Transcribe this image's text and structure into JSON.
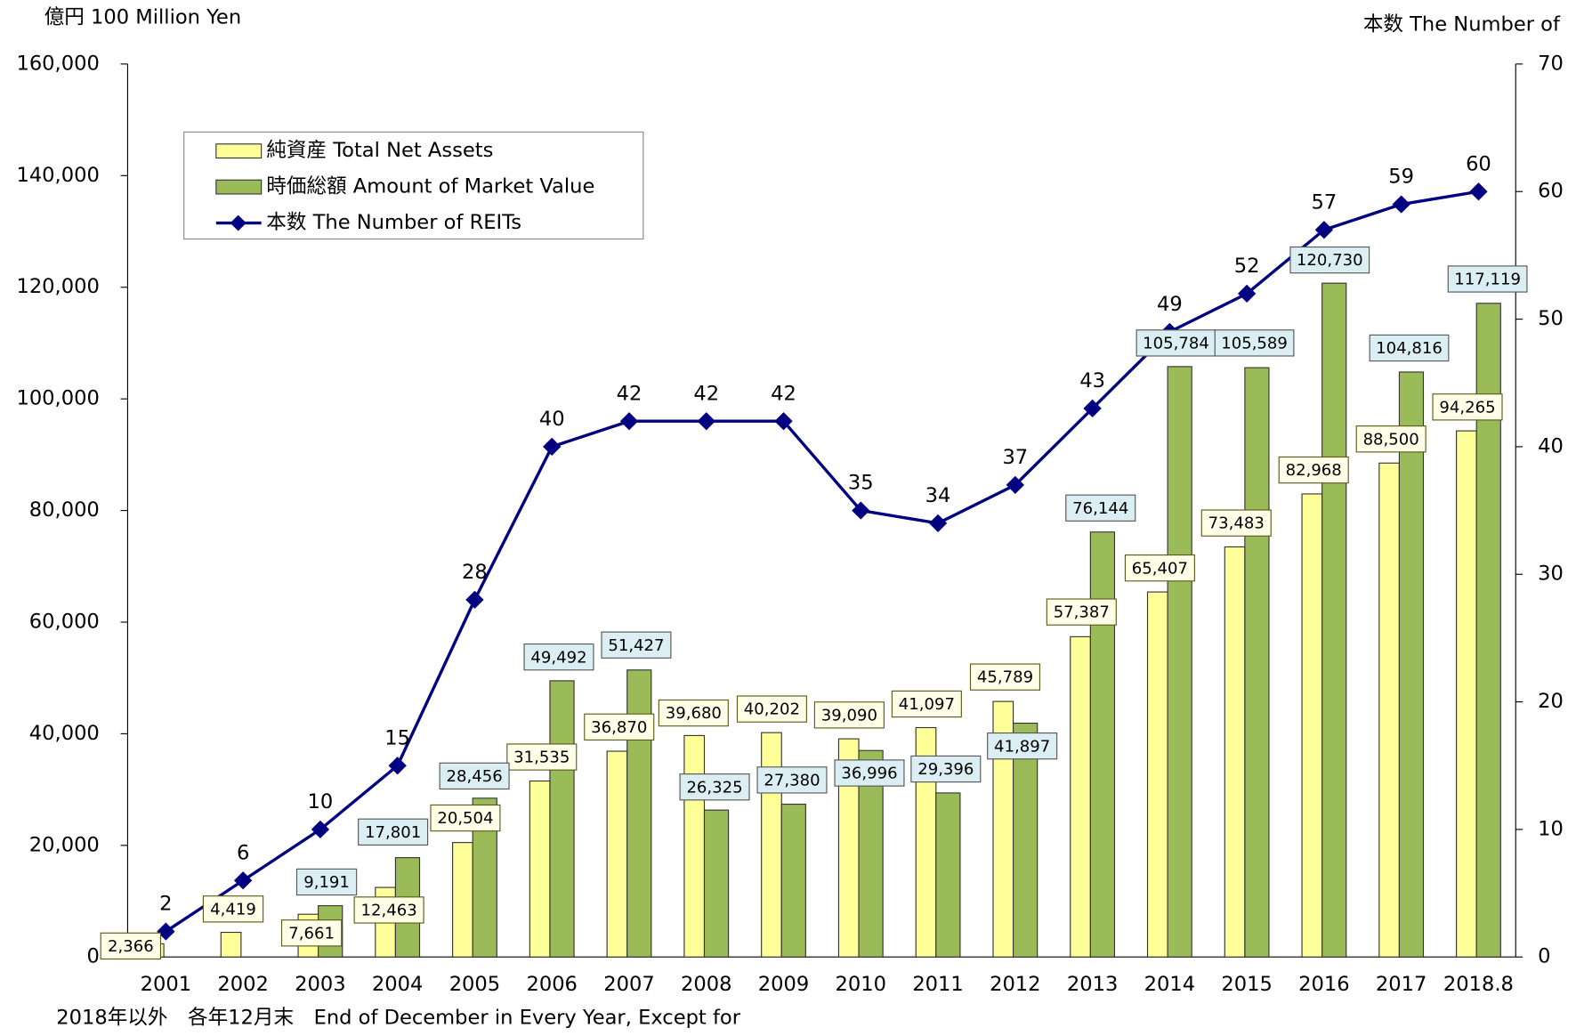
{
  "chart_data": {
    "type": "bar_line",
    "y_label": "億円 100 Million Yen",
    "y2_label": "本数 The Number of",
    "note": "2018年以外　各年12月末　End  of December in Every Year, Except for",
    "categories": [
      "2001",
      "2002",
      "2003",
      "2004",
      "2005",
      "2006",
      "2007",
      "2008",
      "2009",
      "2010",
      "2011",
      "2012",
      "2013",
      "2014",
      "2015",
      "2016",
      "2017",
      "2018.8"
    ],
    "series": [
      {
        "name": "純資産 Total Net Assets",
        "color": "#ffff99",
        "kind": "bar",
        "values": [
          2366,
          4419,
          7661,
          12463,
          20504,
          31535,
          36870,
          39680,
          40202,
          39090,
          41097,
          45789,
          57387,
          65407,
          73483,
          82968,
          88500,
          94265
        ],
        "value_labels": [
          "2,366",
          "4,419",
          "7,661",
          "12,463",
          "20,504",
          "31,535",
          "36,870",
          "39,680",
          "40,202",
          "39,090",
          "41,097",
          "45,789",
          "57,387",
          "65,407",
          "73,483",
          "82,968",
          "88,500",
          "94,265"
        ]
      },
      {
        "name": "時価総額 Amount of Market Value",
        "color": "#9bbb59",
        "kind": "bar",
        "values": [
          null,
          null,
          9191,
          17801,
          28456,
          49492,
          51427,
          26325,
          27380,
          36996,
          29396,
          41897,
          76144,
          105784,
          105589,
          120730,
          104816,
          117119
        ],
        "value_labels": [
          null,
          null,
          "9,191",
          "17,801",
          "28,456",
          "49,492",
          "51,427",
          "26,325",
          "27,380",
          "36,996",
          "29,396",
          "41,897",
          "76,144",
          "105,784",
          "105,589",
          "120,730",
          "104,816",
          "117,119"
        ]
      },
      {
        "name": "本数 The Number of REITs",
        "color": "#000080",
        "kind": "line",
        "axis": "y2",
        "values": [
          2,
          6,
          10,
          15,
          28,
          40,
          42,
          42,
          42,
          35,
          34,
          37,
          43,
          49,
          52,
          57,
          59,
          60
        ]
      }
    ],
    "ylim": [
      0,
      160000
    ],
    "yticks": [
      0,
      {
        "value": 20000,
        "label": "20,000"
      },
      {
        "value": 40000,
        "label": "40,000"
      },
      {
        "value": 60000,
        "label": "60,000"
      },
      {
        "value": 80000,
        "label": "80,000"
      },
      {
        "value": 100000,
        "label": "100,000"
      },
      {
        "value": 120000,
        "label": "120,000"
      },
      {
        "value": 140000,
        "label": "140,000"
      },
      {
        "value": 160000,
        "label": "160,000"
      }
    ],
    "y2lim": [
      0,
      70
    ],
    "y2ticks": [
      0,
      10,
      20,
      30,
      40,
      50,
      60,
      70
    ],
    "legend": "upper left"
  }
}
